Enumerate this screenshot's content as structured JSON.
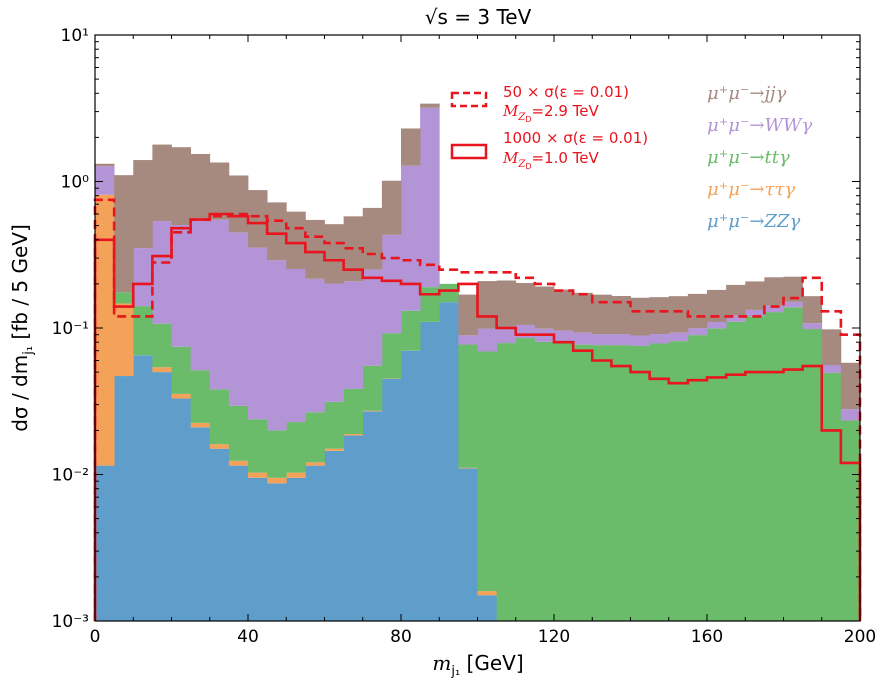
{
  "chart_data": {
    "type": "stacked-step-histogram",
    "title": "√s = 3 TeV",
    "xlabel": "m_{j1} [GeV]",
    "ylabel": "dσ / dm_{j1} [fb / 5 GeV]",
    "xlim": [
      0,
      200
    ],
    "ylim": [
      0.001,
      10
    ],
    "yscale": "log",
    "bin_width": 5,
    "x_ticks": [
      0,
      40,
      80,
      120,
      160,
      200
    ],
    "y_ticks": [
      {
        "value": 0.001,
        "label": "10⁻³"
      },
      {
        "value": 0.01,
        "label": "10⁻²"
      },
      {
        "value": 0.1,
        "label": "10⁻¹"
      },
      {
        "value": 1,
        "label": "10⁰"
      },
      {
        "value": 10,
        "label": "10¹"
      }
    ],
    "stacked_series": [
      {
        "name": "μ⁺μ⁻→ZZγ",
        "color": "#5f9ecb",
        "values": [
          0.0115,
          0.047,
          0.065,
          0.05,
          0.033,
          0.021,
          0.015,
          0.0115,
          0.0095,
          0.0087,
          0.0095,
          0.0115,
          0.0145,
          0.0185,
          0.027,
          0.045,
          0.07,
          0.11,
          0.15,
          0.011,
          0.0015,
          0.0009,
          0.0009,
          0.0009,
          0.0009,
          0.0009,
          0.0009,
          0.0009,
          0.0009,
          0.0009,
          0.0009,
          0.0009,
          0.0009,
          0.0009,
          0.0009,
          0.0009,
          0.0009,
          0.0009,
          0.0009,
          0.0009
        ]
      },
      {
        "name": "μ⁺μ⁻→ττγ",
        "color": "#f4a25a",
        "values": [
          0.8,
          0.1,
          0.0001,
          0.004,
          0.0025,
          0.0015,
          0.0011,
          0.0009,
          0.0008,
          0.0008,
          0.0008,
          0.0006,
          0.0005,
          0.0004,
          0.0003,
          0.0002,
          0.0001,
          0.0001,
          0.0001,
          0.0001,
          0.0001,
          0.0001,
          0,
          0,
          0,
          0,
          0,
          0,
          0,
          0,
          0,
          0,
          0,
          0,
          0,
          0,
          0,
          0,
          0,
          0
        ]
      },
      {
        "name": "μ⁺μ⁻→ttγ",
        "color": "#6abb6a",
        "values": [
          0.0001,
          0.028,
          0.076,
          0.053,
          0.039,
          0.029,
          0.022,
          0.017,
          0.0135,
          0.0105,
          0.0125,
          0.0145,
          0.0163,
          0.0195,
          0.028,
          0.047,
          0.061,
          0.08,
          0.05,
          0.066,
          0.0675,
          0.0779,
          0.0845,
          0.0795,
          0.0786,
          0.0761,
          0.0755,
          0.0755,
          0.0745,
          0.0775,
          0.0805,
          0.0885,
          0.0985,
          0.1095,
          0.1195,
          0.1275,
          0.1375,
          0.0975,
          0.0485,
          0.0225
        ]
      },
      {
        "name": "μ⁺μ⁻→WWγ",
        "color": "#b394d6",
        "values": [
          0.46,
          0.0001,
          0.21,
          0.43,
          0.43,
          0.49,
          0.51,
          0.42,
          0.33,
          0.27,
          0.23,
          0.19,
          0.17,
          0.17,
          0.195,
          0.34,
          1.15,
          3.0,
          0.0001,
          0.012,
          0.03,
          0.0221,
          0.0195,
          0.0185,
          0.0165,
          0.0159,
          0.0145,
          0.0145,
          0.0135,
          0.0125,
          0.0115,
          0.0105,
          0.0105,
          0.0115,
          0.0125,
          0.0135,
          0.0125,
          0.0095,
          0.0065,
          0.0045
        ]
      },
      {
        "name": "μ⁺μ⁻→jjγ",
        "color": "#a78a7f",
        "values": [
          0.05,
          0.93,
          1.05,
          1.25,
          1.21,
          1.0,
          0.8,
          0.65,
          0.52,
          0.43,
          0.37,
          0.33,
          0.31,
          0.37,
          0.41,
          0.58,
          1.02,
          0.21,
          0.0001,
          0.08,
          0.11,
          0.11,
          0.098,
          0.093,
          0.087,
          0.081,
          0.078,
          0.0745,
          0.072,
          0.0715,
          0.072,
          0.071,
          0.072,
          0.075,
          0.075,
          0.08,
          0.073,
          0.057,
          0.042,
          0.03
        ]
      }
    ],
    "line_series": [
      {
        "name": "50 × σ(ε = 0.01)",
        "sublabel": "M_{Z_D}=2.9 TeV",
        "color": "#e8141e",
        "style": "dashed",
        "values": [
          0.75,
          0.12,
          0.12,
          0.28,
          0.45,
          0.55,
          0.58,
          0.6,
          0.58,
          0.54,
          0.48,
          0.42,
          0.38,
          0.35,
          0.32,
          0.3,
          0.29,
          0.27,
          0.25,
          0.24,
          0.24,
          0.24,
          0.22,
          0.2,
          0.18,
          0.17,
          0.15,
          0.15,
          0.13,
          0.13,
          0.13,
          0.12,
          0.12,
          0.12,
          0.12,
          0.14,
          0.16,
          0.22,
          0.13,
          0.09
        ]
      },
      {
        "name": "1000 × σ(ε = 0.01)",
        "sublabel": "M_{Z_D}=1.0 TeV",
        "color": "#e8141e",
        "style": "solid",
        "values": [
          0.4,
          0.14,
          0.2,
          0.31,
          0.48,
          0.55,
          0.6,
          0.58,
          0.52,
          0.44,
          0.38,
          0.33,
          0.29,
          0.25,
          0.22,
          0.21,
          0.2,
          0.17,
          0.18,
          0.2,
          0.12,
          0.1,
          0.09,
          0.09,
          0.08,
          0.07,
          0.06,
          0.055,
          0.05,
          0.045,
          0.042,
          0.044,
          0.046,
          0.048,
          0.05,
          0.05,
          0.052,
          0.055,
          0.02,
          0.012
        ]
      }
    ],
    "legend_placement": "upper-center",
    "grid": false
  },
  "labels": {
    "title": "√s = 3 TeV",
    "xlabel_sym": "m",
    "xlabel_sub": "j₁",
    "xlabel_unit": " [GeV]",
    "ylabel": "dσ / dm",
    "ylabel_sub": "j₁",
    "ylabel_unit": " [fb / 5 GeV]",
    "legend1_main": "50 × σ(ε = 0.01)",
    "legend1_sub": "M",
    "legend1_subsub": "Z",
    "legend1_subsubsub": "D",
    "legend1_value": "=2.9 TeV",
    "legend2_main": "1000 × σ(ε = 0.01)",
    "legend2_value": "=1.0 TeV",
    "proc1": "μ⁺μ⁻→jjγ",
    "proc2": "μ⁺μ⁻→WWγ",
    "proc3": "μ⁺μ⁻→ttγ",
    "proc4": "μ⁺μ⁻→ττγ",
    "proc5": "μ⁺μ⁻→ZZγ"
  },
  "colors": {
    "jjg": "#a78a7f",
    "wwg": "#b394d6",
    "ttg": "#6abb6a",
    "tautau": "#f4a25a",
    "zzg": "#5f9ecb",
    "signal": "#e8141e"
  }
}
